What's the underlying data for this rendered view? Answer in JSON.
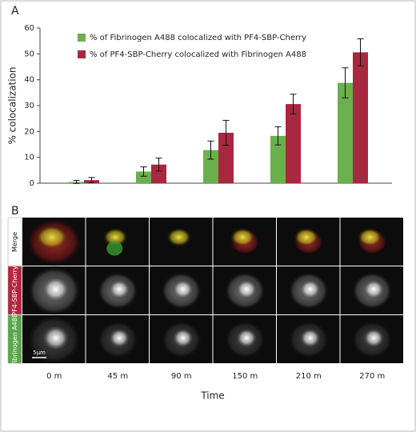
{
  "chart_data": {
    "type": "bar",
    "panel_label": "A",
    "ylabel": "% colocalization",
    "categories": [
      null,
      null,
      null,
      null,
      null
    ],
    "series": [
      {
        "name": "% of Fibrinogen A488 colocalized with PF4-SBP-Cherry",
        "color": "#6ab04c",
        "values": [
          0.5,
          4.5,
          12.8,
          18.3,
          38.8
        ],
        "errors": [
          0.6,
          1.8,
          3.5,
          3.5,
          5.8
        ]
      },
      {
        "name": "% of PF4-SBP-Cherry colocalized with Fibrinogen A488",
        "color": "#a8283f",
        "values": [
          1.2,
          7.2,
          19.5,
          30.6,
          50.6
        ],
        "errors": [
          1.0,
          2.5,
          4.8,
          3.8,
          5.2
        ]
      }
    ],
    "ylim": [
      0,
      60
    ],
    "yticks": [
      0,
      10,
      20,
      30,
      40,
      50,
      60
    ]
  },
  "panel_b": {
    "panel_label": "B",
    "rows": [
      "Merge",
      "PF4-SBP-Cherry",
      "Fibrinogen A488"
    ],
    "columns": [
      "0 m",
      "45 m",
      "90 m",
      "150 m",
      "210 m",
      "270 m"
    ],
    "xlabel": "Time",
    "scale_bar": "5μm"
  }
}
